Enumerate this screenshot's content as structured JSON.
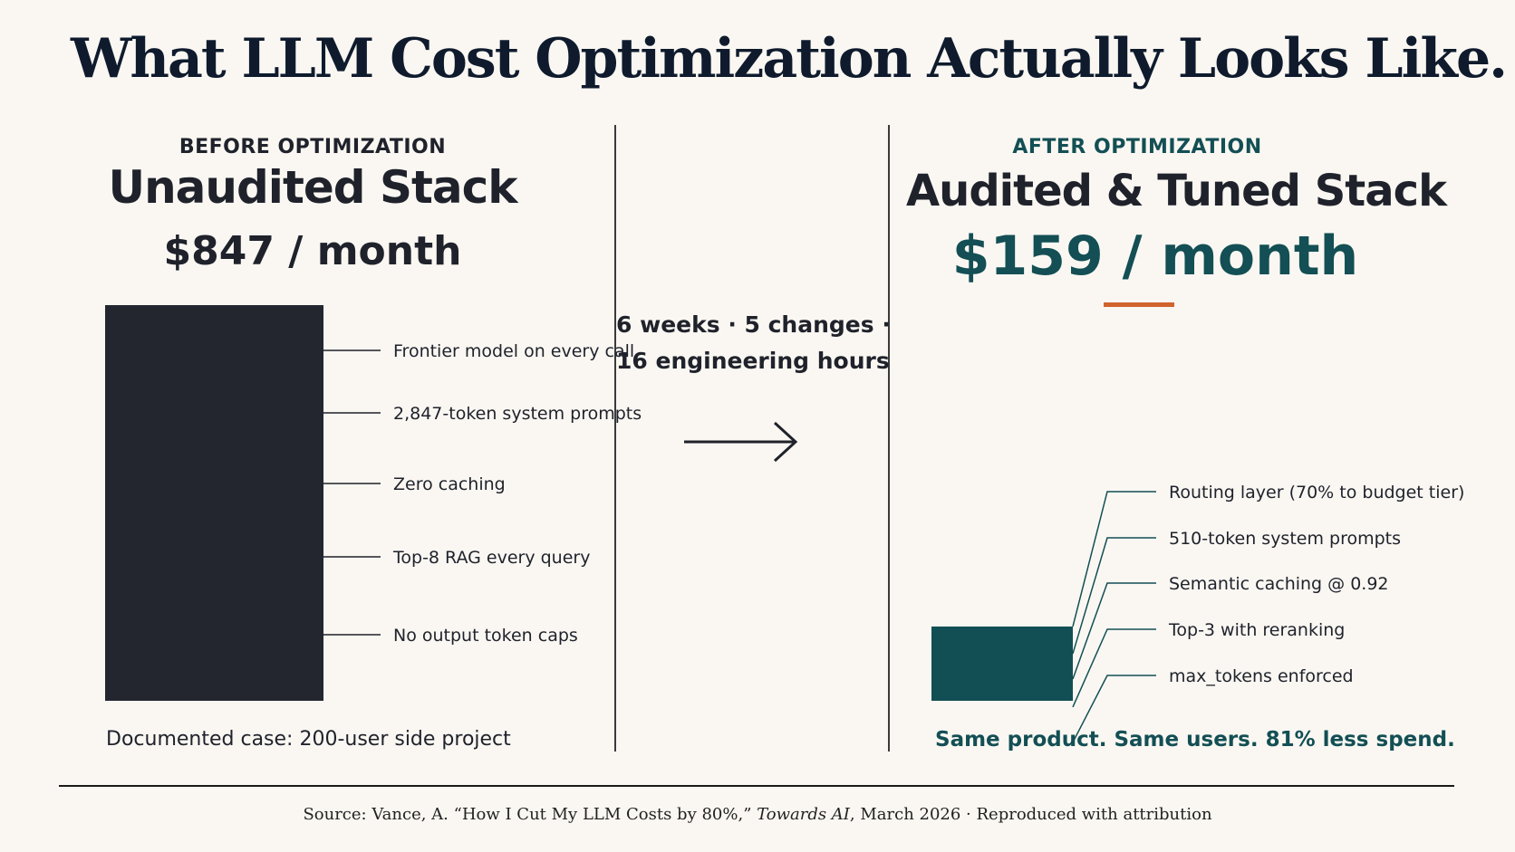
{
  "title": "What LLM Cost Optimization Actually Looks Like.",
  "before": {
    "kicker": "BEFORE OPTIMIZATION",
    "name": "Unaudited Stack",
    "price": "$847 / month",
    "note": "Documented case: 200-user side project"
  },
  "middle": {
    "line1": "6 weeks · 5 changes ·",
    "line2": "16 engineering hours"
  },
  "after": {
    "kicker": "AFTER OPTIMIZATION",
    "name": "Audited & Tuned Stack",
    "price": "$159 / month",
    "tagline": "Same product. Same users. 81% less spend."
  },
  "source": {
    "prefix": "Source: Vance, A. “How I Cut My LLM Costs by 80%,” ",
    "publication": "Towards AI",
    "suffix": ", March 2026 · Reproduced with attribution"
  },
  "colors": {
    "before_bar": "#23262f",
    "after_bar": "#124f54",
    "accent_teal": "#134f54",
    "accent_orange": "#d0642c"
  },
  "chart_data": {
    "type": "bar",
    "unit": "$ / month",
    "categories": [
      "Unaudited Stack",
      "Audited & Tuned Stack"
    ],
    "values": [
      847,
      159
    ],
    "before_annotations": [
      "Frontier model on every call",
      "2,847-token system prompts",
      "Zero caching",
      "Top-8 RAG every query",
      "No output token caps"
    ],
    "after_annotations": [
      "Routing layer (70% to budget tier)",
      "510-token system prompts",
      "Semantic caching @ 0.92",
      "Top-3 with reranking",
      "max_tokens enforced"
    ]
  }
}
